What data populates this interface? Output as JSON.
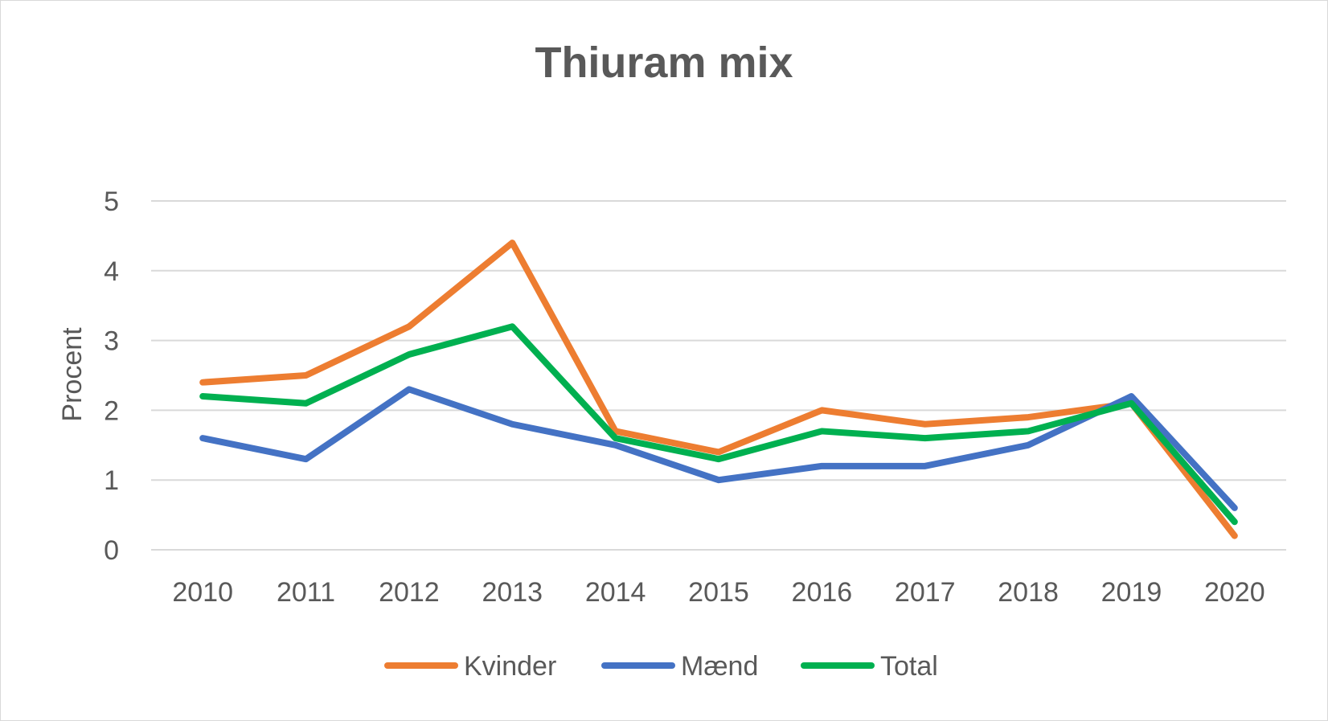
{
  "chart_data": {
    "type": "line",
    "title": "Thiuram mix",
    "xlabel": "",
    "ylabel": "Procent",
    "categories": [
      "2010",
      "2011",
      "2012",
      "2013",
      "2014",
      "2015",
      "2016",
      "2017",
      "2018",
      "2019",
      "2020"
    ],
    "ylim": [
      0,
      5
    ],
    "yticks": [
      "0",
      "1",
      "2",
      "3",
      "4",
      "5"
    ],
    "grid": true,
    "legend_position": "bottom",
    "series": [
      {
        "name": "Kvinder",
        "color": "#ED7D31",
        "values": [
          2.4,
          2.5,
          3.2,
          4.4,
          1.7,
          1.4,
          2.0,
          1.8,
          1.9,
          2.1,
          0.2
        ]
      },
      {
        "name": "Mænd",
        "color": "#4472C4",
        "values": [
          1.6,
          1.3,
          2.3,
          1.8,
          1.5,
          1.0,
          1.2,
          1.2,
          1.5,
          2.2,
          0.6
        ]
      },
      {
        "name": "Total",
        "color": "#00B050",
        "values": [
          2.2,
          2.1,
          2.8,
          3.2,
          1.6,
          1.3,
          1.7,
          1.6,
          1.7,
          2.1,
          0.4
        ]
      }
    ]
  }
}
